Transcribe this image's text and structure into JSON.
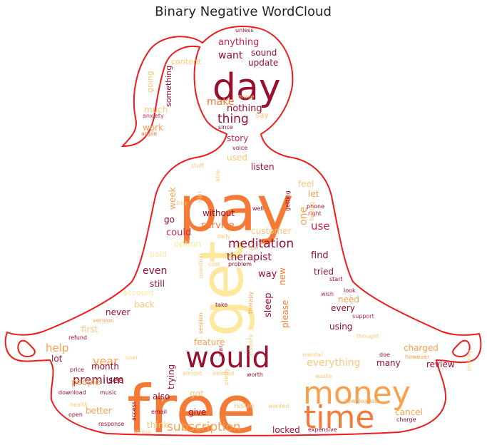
{
  "chart_data": {
    "type": "wordcloud",
    "title": "Binary Negative WordCloud",
    "mask_shape": "meditating-woman-silhouette",
    "colors": {
      "outline": "#ee1c1c",
      "palette": [
        "#990f2e",
        "#c8284a",
        "#f47a36",
        "#f9a04d",
        "#fcc77a",
        "#fde89c"
      ]
    },
    "words": [
      {
        "text": "free",
        "size": 92,
        "color": "#f47a36"
      },
      {
        "text": "pay",
        "size": 88,
        "color": "#f47a36"
      },
      {
        "text": "get",
        "size": 82,
        "color": "#fde89c"
      },
      {
        "text": "day",
        "size": 52,
        "color": "#990f2e"
      },
      {
        "text": "money",
        "size": 44,
        "color": "#f9a04d"
      },
      {
        "text": "time",
        "size": 44,
        "color": "#f47a36"
      },
      {
        "text": "would",
        "size": 40,
        "color": "#990f2e"
      },
      {
        "text": "subscription",
        "size": 17,
        "color": "#f9a04d"
      },
      {
        "text": "meditation",
        "size": 17,
        "color": "#990f2e"
      },
      {
        "text": "thing",
        "size": 17,
        "color": "#990f2e"
      },
      {
        "text": "premium",
        "size": 16,
        "color": "#990f2e"
      },
      {
        "text": "year",
        "size": 16,
        "color": "#f9a04d"
      },
      {
        "text": "want",
        "size": 14,
        "color": "#990f2e"
      },
      {
        "text": "make",
        "size": 14,
        "color": "#f47a36"
      },
      {
        "text": "help",
        "size": 15,
        "color": "#f9a04d"
      },
      {
        "text": "everything",
        "size": 14,
        "color": "#fcc77a"
      },
      {
        "text": "even",
        "size": 14,
        "color": "#990f2e"
      },
      {
        "text": "therapist",
        "size": 14,
        "color": "#990f2e"
      },
      {
        "text": "use",
        "size": 15,
        "color": "#c8284a"
      },
      {
        "text": "could",
        "size": 13,
        "color": "#c8284a"
      },
      {
        "text": "anything",
        "size": 13,
        "color": "#c8284a"
      },
      {
        "text": "nothing",
        "size": 13,
        "color": "#990f2e"
      },
      {
        "text": "sound",
        "size": 12,
        "color": "#990f2e"
      },
      {
        "text": "update",
        "size": 12,
        "color": "#990f2e"
      },
      {
        "text": "story",
        "size": 12,
        "color": "#c8284a"
      },
      {
        "text": "used",
        "size": 12,
        "color": "#fcc77a"
      },
      {
        "text": "listen",
        "size": 12,
        "color": "#990f2e"
      },
      {
        "text": "feel",
        "size": 12,
        "color": "#fcc77a"
      },
      {
        "text": "let",
        "size": 12,
        "color": "#f9a04d"
      },
      {
        "text": "one",
        "size": 14,
        "color": "#f9a04d"
      },
      {
        "text": "week",
        "size": 12,
        "color": "#f9a04d"
      },
      {
        "text": "go",
        "size": 12,
        "color": "#990f2e"
      },
      {
        "text": "without",
        "size": 12,
        "color": "#990f2e"
      },
      {
        "text": "service",
        "size": 13,
        "color": "#f47a36"
      },
      {
        "text": "customer",
        "size": 12,
        "color": "#fcc77a"
      },
      {
        "text": "option",
        "size": 12,
        "color": "#fde89c"
      },
      {
        "text": "find",
        "size": 13,
        "color": "#990f2e"
      },
      {
        "text": "way",
        "size": 13,
        "color": "#990f2e"
      },
      {
        "text": "new",
        "size": 12,
        "color": "#f47a36"
      },
      {
        "text": "tried",
        "size": 12,
        "color": "#990f2e"
      },
      {
        "text": "sleep",
        "size": 13,
        "color": "#990f2e"
      },
      {
        "text": "please",
        "size": 12,
        "color": "#f47a36"
      },
      {
        "text": "need",
        "size": 12,
        "color": "#f9a04d"
      },
      {
        "text": "every",
        "size": 12,
        "color": "#990f2e"
      },
      {
        "text": "using",
        "size": 12,
        "color": "#990f2e"
      },
      {
        "text": "still",
        "size": 12,
        "color": "#990f2e"
      },
      {
        "text": "back",
        "size": 12,
        "color": "#fcc77a"
      },
      {
        "text": "never",
        "size": 12,
        "color": "#990f2e"
      },
      {
        "text": "first",
        "size": 12,
        "color": "#fcc77a"
      },
      {
        "text": "lot",
        "size": 12,
        "color": "#990f2e"
      },
      {
        "text": "month",
        "size": 12,
        "color": "#990f2e"
      },
      {
        "text": "people",
        "size": 12,
        "color": "#f9a04d"
      },
      {
        "text": "see",
        "size": 12,
        "color": "#990f2e"
      },
      {
        "text": "better",
        "size": 12,
        "color": "#f9a04d"
      },
      {
        "text": "trying",
        "size": 12,
        "color": "#990f2e"
      },
      {
        "text": "also",
        "size": 12,
        "color": "#990f2e"
      },
      {
        "text": "got",
        "size": 12,
        "color": "#fcc77a"
      },
      {
        "text": "give",
        "size": 12,
        "color": "#990f2e"
      },
      {
        "text": "think",
        "size": 12,
        "color": "#fcc77a"
      },
      {
        "text": "feature",
        "size": 12,
        "color": "#f9a04d"
      },
      {
        "text": "charged",
        "size": 12,
        "color": "#f9a04d"
      },
      {
        "text": "review",
        "size": 12,
        "color": "#990f2e"
      },
      {
        "text": "many",
        "size": 12,
        "color": "#990f2e"
      },
      {
        "text": "cancel",
        "size": 12,
        "color": "#f9a04d"
      },
      {
        "text": "locked",
        "size": 12,
        "color": "#990f2e"
      },
      {
        "text": "issue",
        "size": 11,
        "color": "#fcc77a"
      },
      {
        "text": "something",
        "size": 11,
        "color": "#990f2e"
      },
      {
        "text": "much",
        "size": 12,
        "color": "#fcc77a"
      },
      {
        "text": "work",
        "size": 12,
        "color": "#f9a04d"
      },
      {
        "text": "content",
        "size": 11,
        "color": "#fcc77a"
      },
      {
        "text": "going",
        "size": 11,
        "color": "#fcc77a"
      },
      {
        "text": "say",
        "size": 11,
        "color": "#fcc77a"
      },
      {
        "text": "account",
        "size": 11,
        "color": "#fde89c"
      },
      {
        "text": "paid",
        "size": 11,
        "color": "#fde89c"
      },
      {
        "text": "unless",
        "size": 8,
        "color": "#990f2e"
      },
      {
        "text": "made",
        "size": 8,
        "color": "#fcc77a"
      },
      {
        "text": "anxiety",
        "size": 8,
        "color": "#c8284a"
      },
      {
        "text": "apple",
        "size": 8,
        "color": "#f47a36"
      },
      {
        "text": "since",
        "size": 8,
        "color": "#990f2e"
      },
      {
        "text": "voice",
        "size": 8,
        "color": "#990f2e"
      },
      {
        "text": "stuff",
        "size": 8,
        "color": "#fcc77a"
      },
      {
        "text": "able",
        "size": 8,
        "color": "#fcc77a"
      },
      {
        "text": "sign",
        "size": 8,
        "color": "#fcc77a"
      },
      {
        "text": "getting",
        "size": 8,
        "color": "#990f2e"
      },
      {
        "text": "well",
        "size": 8,
        "color": "#990f2e"
      },
      {
        "text": "buy",
        "size": 8,
        "color": "#fcc77a"
      },
      {
        "text": "phone",
        "size": 8,
        "color": "#990f2e"
      },
      {
        "text": "right",
        "size": 8,
        "color": "#c8284a"
      },
      {
        "text": "daily",
        "size": 8,
        "color": "#fcc77a"
      },
      {
        "text": "two",
        "size": 8,
        "color": "#fcc77a"
      },
      {
        "text": "problem",
        "size": 8,
        "color": "#990f2e"
      },
      {
        "text": "cost",
        "size": 8,
        "color": "#fcc77a"
      },
      {
        "text": "start",
        "size": 8,
        "color": "#990f2e"
      },
      {
        "text": "look",
        "size": 8,
        "color": "#990f2e"
      },
      {
        "text": "wish",
        "size": 8,
        "color": "#c8284a"
      },
      {
        "text": "support",
        "size": 8,
        "color": "#c8284a"
      },
      {
        "text": "thought",
        "size": 8,
        "color": "#fcc77a"
      },
      {
        "text": "take",
        "size": 8,
        "color": "#990f2e"
      },
      {
        "text": "therapy",
        "size": 8,
        "color": "#f9a04d"
      },
      {
        "text": "session",
        "size": 8,
        "color": "#f9a04d"
      },
      {
        "text": "question",
        "size": 8,
        "color": "#fcc77a"
      },
      {
        "text": "version",
        "size": 8,
        "color": "#f9a04d"
      },
      {
        "text": "refund",
        "size": 8,
        "color": "#990f2e"
      },
      {
        "text": "user",
        "size": 8,
        "color": "#fcc77a"
      },
      {
        "text": "price",
        "size": 8,
        "color": "#990f2e"
      },
      {
        "text": "download",
        "size": 8,
        "color": "#990f2e"
      },
      {
        "text": "music",
        "size": 8,
        "color": "#990f2e"
      },
      {
        "text": "access",
        "size": 8,
        "color": "#990f2e"
      },
      {
        "text": "email",
        "size": 8,
        "color": "#990f2e"
      },
      {
        "text": "open",
        "size": 8,
        "color": "#990f2e"
      },
      {
        "text": "response",
        "size": 8,
        "color": "#990f2e"
      },
      {
        "text": "stress",
        "size": 8,
        "color": "#fcc77a"
      },
      {
        "text": "almost",
        "size": 8,
        "color": "#fcc77a"
      },
      {
        "text": "deleted",
        "size": 8,
        "color": "#fcc77a"
      },
      {
        "text": "worth",
        "size": 8,
        "color": "#990f2e"
      },
      {
        "text": "pretty",
        "size": 8,
        "color": "#fcc77a"
      },
      {
        "text": "actually",
        "size": 8,
        "color": "#fcc77a"
      },
      {
        "text": "star",
        "size": 8,
        "color": "#990f2e"
      },
      {
        "text": "mental",
        "size": 8,
        "color": "#fcc77a"
      },
      {
        "text": "however",
        "size": 8,
        "color": "#f9a04d"
      },
      {
        "text": "doe",
        "size": 8,
        "color": "#990f2e"
      },
      {
        "text": "downloaded",
        "size": 8,
        "color": "#f9a04d"
      },
      {
        "text": "charge",
        "size": 8,
        "color": "#990f2e"
      },
      {
        "text": "expensive",
        "size": 8,
        "color": "#990f2e"
      },
      {
        "text": "waste",
        "size": 8,
        "color": "#fcc77a"
      },
      {
        "text": "wanted",
        "size": 8,
        "color": "#fcc77a"
      },
      {
        "text": "health",
        "size": 8,
        "color": "#fcc77a"
      },
      {
        "text": "feeling",
        "size": 8,
        "color": "#fcc77a"
      },
      {
        "text": "journey",
        "size": 8,
        "color": "#fcc77a"
      }
    ]
  }
}
